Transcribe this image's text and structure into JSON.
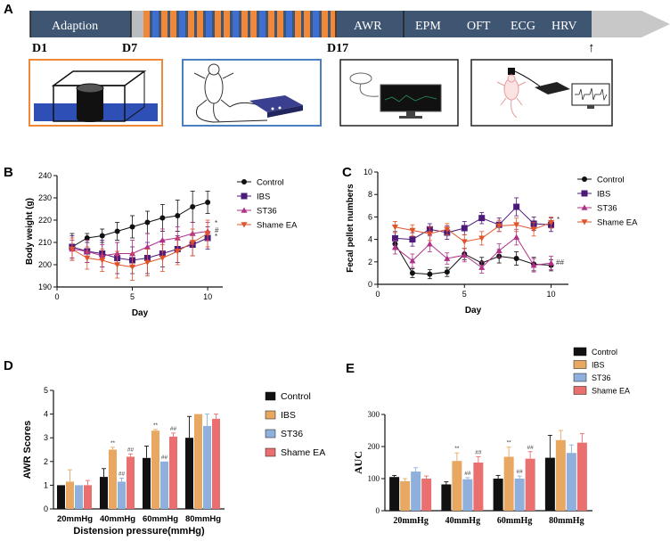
{
  "panel_labels": {
    "a": "A",
    "b": "B",
    "c": "C",
    "d": "D",
    "e": "E"
  },
  "timeline": {
    "stages": [
      "Adaption",
      "AWR",
      "EPM",
      "OFT",
      "ECG",
      "HRV"
    ],
    "days": [
      "D1",
      "D7",
      "D17"
    ],
    "arrow_marker": "↑",
    "colors": {
      "bar": "#3f5672",
      "blue": "#3e6fd0",
      "orange": "#f0883a",
      "gray": "#b9bcc0",
      "arrow": "#c8c8c8"
    }
  },
  "illustrations": [
    {
      "name": "stress-box-illustration",
      "border": "#f0883a"
    },
    {
      "name": "ea-stimulation-illustration",
      "border": "#4a7fc0"
    },
    {
      "name": "awr-monitor-illustration",
      "border": "#222222"
    },
    {
      "name": "ecg-recording-illustration",
      "border": "#222222"
    }
  ],
  "chart_data": [
    {
      "id": "B",
      "type": "line",
      "title": "",
      "xlabel": "Day",
      "ylabel": "Body weight (g)",
      "xlim": [
        0,
        11
      ],
      "ylim": [
        190,
        240
      ],
      "xticks": [
        0,
        5,
        10
      ],
      "yticks": [
        190,
        200,
        210,
        220,
        230,
        240
      ],
      "x": [
        1,
        2,
        3,
        4,
        5,
        6,
        7,
        8,
        9,
        10
      ],
      "series": [
        {
          "name": "Control",
          "color": "#111111",
          "marker": "circle",
          "values": [
            208,
            212,
            213,
            215,
            217,
            219,
            221,
            222,
            226,
            228
          ],
          "err": [
            6,
            2,
            3,
            4,
            5,
            5,
            6,
            7,
            7,
            5
          ]
        },
        {
          "name": "IBS",
          "color": "#4b1a7a",
          "marker": "square",
          "values": [
            208,
            206,
            205,
            203,
            202,
            203,
            205,
            207,
            209,
            212
          ],
          "err": [
            5,
            5,
            6,
            7,
            6,
            7,
            6,
            6,
            5,
            5
          ]
        },
        {
          "name": "ST36",
          "color": "#b0308a",
          "marker": "triangle",
          "values": [
            207,
            206,
            204,
            205,
            205,
            208,
            211,
            212,
            214,
            215
          ],
          "err": [
            4,
            5,
            5,
            5,
            6,
            6,
            5,
            5,
            5,
            4
          ]
        },
        {
          "name": "Shame EA",
          "color": "#e0542a",
          "marker": "tri-down",
          "values": [
            207,
            203,
            202,
            200,
            199,
            201,
            203,
            206,
            210,
            214
          ],
          "err": [
            5,
            5,
            5,
            6,
            6,
            6,
            6,
            6,
            6,
            6
          ]
        }
      ],
      "annotations": [
        "*",
        "#",
        "*"
      ],
      "legend": "right"
    },
    {
      "id": "C",
      "type": "line",
      "title": "",
      "xlabel": "Day",
      "ylabel": "Fecal pellet numbers",
      "xlim": [
        0,
        11
      ],
      "ylim": [
        0,
        10
      ],
      "xticks": [
        0,
        5,
        10
      ],
      "yticks": [
        0,
        2,
        4,
        6,
        8,
        10
      ],
      "x": [
        1,
        2,
        3,
        4,
        5,
        6,
        7,
        8,
        9,
        10
      ],
      "series": [
        {
          "name": "Control",
          "color": "#111111",
          "marker": "circle",
          "values": [
            3.6,
            1.0,
            0.9,
            1.1,
            2.7,
            1.9,
            2.5,
            2.3,
            1.8,
            1.7
          ],
          "err": [
            0.5,
            0.4,
            0.4,
            0.4,
            0.5,
            0.5,
            0.6,
            0.6,
            0.6,
            0.5
          ]
        },
        {
          "name": "IBS",
          "color": "#4b1a7a",
          "marker": "square",
          "values": [
            4.1,
            4.0,
            4.9,
            4.6,
            5.0,
            5.9,
            5.3,
            6.9,
            5.4,
            5.3
          ],
          "err": [
            0.6,
            0.6,
            0.5,
            0.6,
            0.6,
            0.5,
            0.6,
            0.8,
            0.6,
            0.6
          ]
        },
        {
          "name": "ST36",
          "color": "#b0308a",
          "marker": "triangle",
          "values": [
            3.3,
            2.1,
            3.6,
            2.3,
            2.6,
            1.5,
            3.0,
            4.2,
            1.7,
            1.9
          ],
          "err": [
            0.6,
            0.6,
            0.7,
            0.5,
            0.6,
            0.5,
            0.6,
            0.7,
            0.6,
            0.6
          ]
        },
        {
          "name": "Shame EA",
          "color": "#e0542a",
          "marker": "tri-down",
          "values": [
            5.1,
            4.8,
            4.5,
            4.9,
            3.8,
            4.1,
            5.2,
            5.3,
            4.9,
            5.5
          ],
          "err": [
            0.5,
            0.5,
            0.6,
            0.5,
            0.6,
            0.6,
            0.5,
            0.6,
            0.6,
            0.5
          ]
        }
      ],
      "annotations": [
        "*",
        "##"
      ],
      "legend": "right"
    },
    {
      "id": "D",
      "type": "bar",
      "title": "",
      "xlabel": "Distension pressure(mmHg)",
      "ylabel": "AWR Scores",
      "ylim": [
        0,
        5
      ],
      "yticks": [
        0,
        1,
        2,
        3,
        4,
        5
      ],
      "categories": [
        "20mmHg",
        "40mmHg",
        "60mmHg",
        "80mmHg"
      ],
      "series": [
        {
          "name": "Control",
          "color": "#111111",
          "values": [
            1.0,
            1.35,
            2.15,
            3.0
          ],
          "err": [
            0,
            0.35,
            0.5,
            0.9
          ]
        },
        {
          "name": "IBS",
          "color": "#e8a862",
          "values": [
            1.15,
            2.5,
            3.3,
            4.0
          ],
          "err": [
            0.5,
            0.1,
            0.05,
            0
          ]
        },
        {
          "name": "ST36",
          "color": "#8fb0dc",
          "values": [
            1.0,
            1.15,
            2.0,
            3.5
          ],
          "err": [
            0,
            0.15,
            0,
            0.5
          ]
        },
        {
          "name": "Shame EA",
          "color": "#ea6f6f",
          "values": [
            1.0,
            2.2,
            3.05,
            3.8
          ],
          "err": [
            0.2,
            0.12,
            0.15,
            0.2
          ]
        }
      ],
      "annotations": [
        "**",
        "##",
        "##",
        "**",
        "##",
        "##"
      ],
      "legend": "right"
    },
    {
      "id": "E",
      "type": "bar",
      "title": "",
      "xlabel": "",
      "ylabel": "AUC",
      "ylim": [
        0,
        300
      ],
      "yticks": [
        0,
        100,
        200,
        300
      ],
      "categories": [
        "20mmHg",
        "40mmHg",
        "60mmHg",
        "80mmHg"
      ],
      "series": [
        {
          "name": "Control",
          "color": "#111111",
          "values": [
            105,
            82,
            100,
            165
          ],
          "err": [
            5,
            8,
            10,
            70
          ]
        },
        {
          "name": "IBS",
          "color": "#e8a862",
          "values": [
            92,
            155,
            168,
            220
          ],
          "err": [
            8,
            25,
            30,
            30
          ]
        },
        {
          "name": "ST36",
          "color": "#8fb0dc",
          "values": [
            122,
            98,
            100,
            180
          ],
          "err": [
            12,
            5,
            8,
            25
          ]
        },
        {
          "name": "Shame EA",
          "color": "#ea6f6f",
          "values": [
            100,
            150,
            162,
            212
          ],
          "err": [
            8,
            18,
            22,
            28
          ]
        }
      ],
      "annotations": [
        "**",
        "##",
        "##",
        "**",
        "##",
        "##"
      ],
      "legend": "top-right"
    }
  ]
}
